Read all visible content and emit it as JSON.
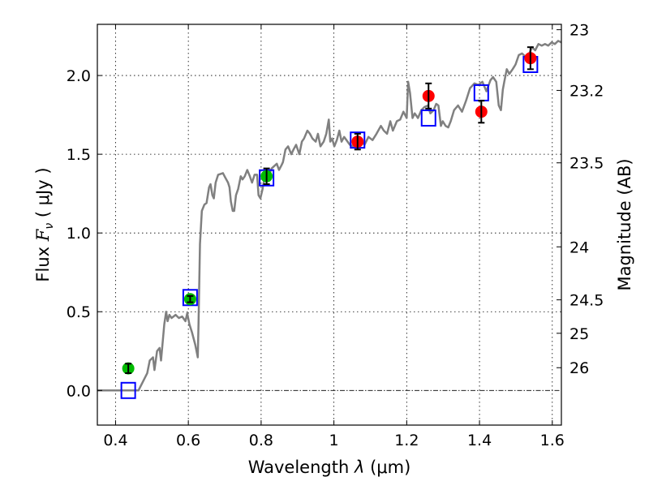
{
  "chart_data": {
    "type": "scatter",
    "title": "",
    "xlabel": {
      "prefix": "Wavelength  ",
      "symbol": "λ",
      "unit": " (μm)"
    },
    "ylabel": {
      "prefix": "Flux  ",
      "symbol": "F",
      "sub": "ν",
      "unit": "  ( μJy )"
    },
    "y2label": "Magnitude (AB)",
    "xlim": [
      0.35,
      1.625
    ],
    "ylim": [
      -0.22,
      2.325
    ],
    "grid": true,
    "xticks": [
      {
        "v": 0.4,
        "label": "0.4"
      },
      {
        "v": 0.6,
        "label": "0.6"
      },
      {
        "v": 0.8,
        "label": "0.8"
      },
      {
        "v": 1.0,
        "label": "1"
      },
      {
        "v": 1.2,
        "label": "1.2"
      },
      {
        "v": 1.4,
        "label": "1.4"
      },
      {
        "v": 1.6,
        "label": "1.6"
      }
    ],
    "yticks": [
      {
        "v": 0.0,
        "label": "0.0"
      },
      {
        "v": 0.5,
        "label": "0.5"
      },
      {
        "v": 1.0,
        "label": "1.0"
      },
      {
        "v": 1.5,
        "label": "1.5"
      },
      {
        "v": 2.0,
        "label": "2.0"
      }
    ],
    "y2ticks": [
      {
        "mag": 23,
        "label": "23"
      },
      {
        "mag": 23.2,
        "label": "23.2"
      },
      {
        "mag": 23.5,
        "label": "23.5"
      },
      {
        "mag": 24,
        "label": "24"
      },
      {
        "mag": 24.5,
        "label": "24.5"
      },
      {
        "mag": 25,
        "label": "25"
      },
      {
        "mag": 26,
        "label": "26"
      }
    ],
    "colors": {
      "spectrum": "#808080",
      "ground": "#00bb00",
      "space": "#ff0000",
      "model": "#0000ff",
      "errorbar": "#000000"
    },
    "series": [
      {
        "name": "spectrum",
        "kind": "line",
        "points": [
          [
            0.349,
            0
          ],
          [
            0.463,
            0
          ],
          [
            0.487,
            0.11
          ],
          [
            0.494,
            0.19
          ],
          [
            0.503,
            0.21
          ],
          [
            0.507,
            0.13
          ],
          [
            0.514,
            0.25
          ],
          [
            0.521,
            0.27
          ],
          [
            0.525,
            0.19
          ],
          [
            0.534,
            0.42
          ],
          [
            0.539,
            0.5
          ],
          [
            0.543,
            0.44
          ],
          [
            0.548,
            0.48
          ],
          [
            0.554,
            0.46
          ],
          [
            0.565,
            0.48
          ],
          [
            0.574,
            0.46
          ],
          [
            0.583,
            0.47
          ],
          [
            0.592,
            0.44
          ],
          [
            0.597,
            0.49
          ],
          [
            0.603,
            0.42
          ],
          [
            0.61,
            0.37
          ],
          [
            0.619,
            0.29
          ],
          [
            0.626,
            0.21
          ],
          [
            0.628,
            0.42
          ],
          [
            0.632,
            0.93
          ],
          [
            0.637,
            1.14
          ],
          [
            0.644,
            1.18
          ],
          [
            0.65,
            1.19
          ],
          [
            0.657,
            1.29
          ],
          [
            0.661,
            1.31
          ],
          [
            0.666,
            1.24
          ],
          [
            0.67,
            1.22
          ],
          [
            0.675,
            1.32
          ],
          [
            0.682,
            1.37
          ],
          [
            0.695,
            1.38
          ],
          [
            0.702,
            1.35
          ],
          [
            0.709,
            1.32
          ],
          [
            0.713,
            1.29
          ],
          [
            0.717,
            1.2
          ],
          [
            0.722,
            1.14
          ],
          [
            0.726,
            1.14
          ],
          [
            0.731,
            1.24
          ],
          [
            0.737,
            1.28
          ],
          [
            0.744,
            1.36
          ],
          [
            0.749,
            1.34
          ],
          [
            0.755,
            1.36
          ],
          [
            0.762,
            1.4
          ],
          [
            0.769,
            1.36
          ],
          [
            0.775,
            1.32
          ],
          [
            0.782,
            1.37
          ],
          [
            0.789,
            1.37
          ],
          [
            0.793,
            1.24
          ],
          [
            0.798,
            1.22
          ],
          [
            0.804,
            1.28
          ],
          [
            0.811,
            1.37
          ],
          [
            0.822,
            1.37
          ],
          [
            0.829,
            1.41
          ],
          [
            0.843,
            1.44
          ],
          [
            0.849,
            1.4
          ],
          [
            0.856,
            1.43
          ],
          [
            0.86,
            1.45
          ],
          [
            0.867,
            1.53
          ],
          [
            0.874,
            1.55
          ],
          [
            0.883,
            1.5
          ],
          [
            0.889,
            1.53
          ],
          [
            0.896,
            1.56
          ],
          [
            0.905,
            1.5
          ],
          [
            0.912,
            1.58
          ],
          [
            0.918,
            1.6
          ],
          [
            0.927,
            1.65
          ],
          [
            0.934,
            1.63
          ],
          [
            0.941,
            1.6
          ],
          [
            0.95,
            1.58
          ],
          [
            0.956,
            1.63
          ],
          [
            0.963,
            1.55
          ],
          [
            0.972,
            1.58
          ],
          [
            0.979,
            1.63
          ],
          [
            0.986,
            1.72
          ],
          [
            0.99,
            1.58
          ],
          [
            0.995,
            1.6
          ],
          [
            1.001,
            1.55
          ],
          [
            1.008,
            1.59
          ],
          [
            1.015,
            1.65
          ],
          [
            1.021,
            1.58
          ],
          [
            1.028,
            1.61
          ],
          [
            1.044,
            1.56
          ],
          [
            1.053,
            1.55
          ],
          [
            1.062,
            1.58
          ],
          [
            1.073,
            1.59
          ],
          [
            1.084,
            1.56
          ],
          [
            1.095,
            1.61
          ],
          [
            1.106,
            1.59
          ],
          [
            1.117,
            1.63
          ],
          [
            1.129,
            1.68
          ],
          [
            1.137,
            1.65
          ],
          [
            1.146,
            1.63
          ],
          [
            1.155,
            1.71
          ],
          [
            1.162,
            1.65
          ],
          [
            1.173,
            1.71
          ],
          [
            1.182,
            1.72
          ],
          [
            1.191,
            1.77
          ],
          [
            1.2,
            1.73
          ],
          [
            1.204,
            1.96
          ],
          [
            1.209,
            1.89
          ],
          [
            1.216,
            1.73
          ],
          [
            1.222,
            1.76
          ],
          [
            1.231,
            1.73
          ],
          [
            1.24,
            1.78
          ],
          [
            1.249,
            1.8
          ],
          [
            1.258,
            1.81
          ],
          [
            1.265,
            1.76
          ],
          [
            1.274,
            1.78
          ],
          [
            1.281,
            1.82
          ],
          [
            1.287,
            1.81
          ],
          [
            1.294,
            1.68
          ],
          [
            1.299,
            1.71
          ],
          [
            1.307,
            1.68
          ],
          [
            1.314,
            1.67
          ],
          [
            1.321,
            1.71
          ],
          [
            1.33,
            1.78
          ],
          [
            1.341,
            1.81
          ],
          [
            1.352,
            1.77
          ],
          [
            1.363,
            1.84
          ],
          [
            1.374,
            1.92
          ],
          [
            1.386,
            1.95
          ],
          [
            1.397,
            1.94
          ],
          [
            1.408,
            1.96
          ],
          [
            1.419,
            1.9
          ],
          [
            1.43,
            1.97
          ],
          [
            1.437,
            1.99
          ],
          [
            1.446,
            1.96
          ],
          [
            1.453,
            1.81
          ],
          [
            1.459,
            1.78
          ],
          [
            1.464,
            1.91
          ],
          [
            1.468,
            1.96
          ],
          [
            1.475,
            2.04
          ],
          [
            1.482,
            2.01
          ],
          [
            1.491,
            2.04
          ],
          [
            1.499,
            2.07
          ],
          [
            1.508,
            2.13
          ],
          [
            1.517,
            2.14
          ],
          [
            1.526,
            2.12
          ],
          [
            1.535,
            2.13
          ],
          [
            1.544,
            2.18
          ],
          [
            1.553,
            2.16
          ],
          [
            1.562,
            2.2
          ],
          [
            1.571,
            2.19
          ],
          [
            1.58,
            2.2
          ],
          [
            1.589,
            2.19
          ],
          [
            1.598,
            2.21
          ],
          [
            1.607,
            2.2
          ],
          [
            1.616,
            2.22
          ],
          [
            1.625,
            2.21
          ]
        ]
      },
      {
        "name": "ground-photometry",
        "kind": "points",
        "color_key": "ground",
        "points": [
          {
            "x": 0.435,
            "y": 0.14,
            "err": 0.03
          },
          {
            "x": 0.605,
            "y": 0.58,
            "err": 0.02
          },
          {
            "x": 0.815,
            "y": 1.36,
            "err": 0.05
          }
        ]
      },
      {
        "name": "space-photometry",
        "kind": "points",
        "color_key": "space",
        "points": [
          {
            "x": 1.065,
            "y": 1.58,
            "err": 0.05
          },
          {
            "x": 1.26,
            "y": 1.87,
            "err": 0.08
          },
          {
            "x": 1.405,
            "y": 1.77,
            "err": 0.07
          },
          {
            "x": 1.54,
            "y": 2.11,
            "err": 0.07
          }
        ]
      },
      {
        "name": "model-photometry",
        "kind": "squares",
        "color_key": "model",
        "points": [
          {
            "x": 0.435,
            "y": 0.0
          },
          {
            "x": 0.605,
            "y": 0.59
          },
          {
            "x": 0.815,
            "y": 1.35
          },
          {
            "x": 1.065,
            "y": 1.59
          },
          {
            "x": 1.26,
            "y": 1.73
          },
          {
            "x": 1.405,
            "y": 1.89
          },
          {
            "x": 1.54,
            "y": 2.07
          }
        ]
      }
    ]
  }
}
